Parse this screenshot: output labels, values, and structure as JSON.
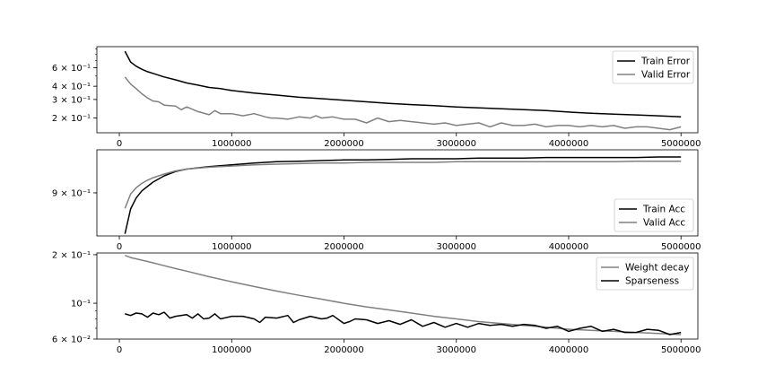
{
  "chart_data": [
    {
      "type": "line",
      "yscale": "log",
      "ylim": [
        0.145,
        0.95
      ],
      "xlim": [
        -200000,
        5150000
      ],
      "xticks": [
        0,
        1000000,
        2000000,
        3000000,
        4000000,
        5000000
      ],
      "xtick_labels": [
        "0",
        "1000000",
        "2000000",
        "3000000",
        "4000000",
        "5000000"
      ],
      "yticks": [
        0.2,
        0.3,
        0.4,
        0.6
      ],
      "ytick_labels": [
        "2 × 10⁻¹",
        "3 × 10⁻¹",
        "4 × 10⁻¹",
        "6 × 10⁻¹"
      ],
      "legend_position": "top-right",
      "grid": false,
      "series": [
        {
          "name": "Train Error",
          "color": "#000000",
          "x": [
            50000,
            100000,
            150000,
            200000,
            250000,
            300000,
            400000,
            500000,
            600000,
            700000,
            800000,
            900000,
            1000000,
            1200000,
            1400000,
            1600000,
            1800000,
            2000000,
            2200000,
            2400000,
            2600000,
            2800000,
            3000000,
            3200000,
            3400000,
            3600000,
            3800000,
            4000000,
            4200000,
            4400000,
            4600000,
            4800000,
            5000000
          ],
          "values": [
            0.86,
            0.68,
            0.62,
            0.58,
            0.55,
            0.53,
            0.49,
            0.46,
            0.43,
            0.41,
            0.39,
            0.38,
            0.365,
            0.345,
            0.33,
            0.315,
            0.305,
            0.295,
            0.285,
            0.275,
            0.268,
            0.262,
            0.255,
            0.25,
            0.245,
            0.24,
            0.235,
            0.228,
            0.222,
            0.218,
            0.214,
            0.21,
            0.205
          ]
        },
        {
          "name": "Valid Error",
          "color": "#808080",
          "x": [
            50000,
            100000,
            150000,
            200000,
            250000,
            300000,
            350000,
            400000,
            500000,
            550000,
            600000,
            700000,
            800000,
            850000,
            900000,
            1000000,
            1050000,
            1100000,
            1200000,
            1300000,
            1350000,
            1400000,
            1500000,
            1600000,
            1700000,
            1750000,
            1800000,
            1900000,
            2000000,
            2100000,
            2200000,
            2300000,
            2400000,
            2500000,
            2600000,
            2700000,
            2800000,
            2900000,
            3000000,
            3100000,
            3200000,
            3300000,
            3400000,
            3500000,
            3600000,
            3700000,
            3800000,
            3900000,
            4000000,
            4100000,
            4200000,
            4300000,
            4400000,
            4500000,
            4600000,
            4700000,
            4800000,
            4900000,
            5000000
          ],
          "values": [
            0.49,
            0.42,
            0.38,
            0.34,
            0.31,
            0.29,
            0.285,
            0.265,
            0.26,
            0.24,
            0.255,
            0.23,
            0.215,
            0.235,
            0.22,
            0.22,
            0.215,
            0.21,
            0.22,
            0.205,
            0.2,
            0.2,
            0.195,
            0.205,
            0.2,
            0.21,
            0.2,
            0.205,
            0.195,
            0.195,
            0.18,
            0.2,
            0.185,
            0.19,
            0.185,
            0.18,
            0.175,
            0.18,
            0.17,
            0.175,
            0.18,
            0.165,
            0.18,
            0.17,
            0.17,
            0.175,
            0.165,
            0.17,
            0.17,
            0.165,
            0.17,
            0.165,
            0.17,
            0.16,
            0.165,
            0.165,
            0.16,
            0.155,
            0.165
          ]
        }
      ]
    },
    {
      "type": "line",
      "yscale": "log",
      "ylim": [
        0.835,
        0.97
      ],
      "xlim": [
        -200000,
        5150000
      ],
      "xticks": [
        0,
        1000000,
        2000000,
        3000000,
        4000000,
        5000000
      ],
      "xtick_labels": [
        "0",
        "1000000",
        "2000000",
        "3000000",
        "4000000",
        "5000000"
      ],
      "yticks": [
        0.9
      ],
      "ytick_labels": [
        "9 × 10⁻¹"
      ],
      "legend_position": "bottom-right",
      "grid": false,
      "series": [
        {
          "name": "Train Acc",
          "color": "#000000",
          "x": [
            50000,
            100000,
            150000,
            200000,
            250000,
            300000,
            400000,
            500000,
            600000,
            800000,
            1000000,
            1200000,
            1400000,
            1600000,
            1800000,
            2000000,
            2200000,
            2400000,
            2600000,
            2800000,
            3000000,
            3200000,
            3400000,
            3600000,
            3800000,
            4000000,
            4200000,
            4400000,
            4600000,
            4800000,
            5000000
          ],
          "values": [
            0.838,
            0.875,
            0.892,
            0.903,
            0.91,
            0.917,
            0.927,
            0.934,
            0.938,
            0.942,
            0.945,
            0.948,
            0.95,
            0.951,
            0.952,
            0.953,
            0.953,
            0.954,
            0.955,
            0.955,
            0.955,
            0.956,
            0.956,
            0.956,
            0.957,
            0.957,
            0.957,
            0.957,
            0.957,
            0.958,
            0.958
          ]
        },
        {
          "name": "Valid Acc",
          "color": "#808080",
          "x": [
            50000,
            100000,
            150000,
            200000,
            250000,
            300000,
            400000,
            500000,
            600000,
            800000,
            1000000,
            1200000,
            1400000,
            1600000,
            1800000,
            2000000,
            2200000,
            2400000,
            2600000,
            2800000,
            3000000,
            3200000,
            3400000,
            3600000,
            3800000,
            4000000,
            4200000,
            4400000,
            4600000,
            4800000,
            5000000
          ],
          "values": [
            0.876,
            0.898,
            0.908,
            0.915,
            0.92,
            0.924,
            0.93,
            0.935,
            0.938,
            0.941,
            0.943,
            0.945,
            0.946,
            0.947,
            0.948,
            0.948,
            0.949,
            0.949,
            0.949,
            0.949,
            0.95,
            0.95,
            0.95,
            0.95,
            0.95,
            0.95,
            0.95,
            0.95,
            0.951,
            0.951,
            0.951
          ]
        }
      ]
    },
    {
      "type": "line",
      "yscale": "log",
      "ylim": [
        0.06,
        0.205
      ],
      "xlim": [
        -200000,
        5150000
      ],
      "xticks": [
        0,
        1000000,
        2000000,
        3000000,
        4000000,
        5000000
      ],
      "xtick_labels": [
        "0",
        "1000000",
        "2000000",
        "3000000",
        "4000000",
        "5000000"
      ],
      "yticks": [
        0.06,
        0.1,
        0.2
      ],
      "ytick_labels": [
        "6 × 10⁻²",
        "10⁻¹",
        "2 × 10⁻¹"
      ],
      "legend_position": "top-right",
      "grid": false,
      "series": [
        {
          "name": "Weight decay",
          "color": "#808080",
          "x": [
            50000,
            100000,
            200000,
            300000,
            400000,
            500000,
            600000,
            800000,
            1000000,
            1200000,
            1400000,
            1600000,
            1800000,
            2000000,
            2200000,
            2400000,
            2600000,
            2800000,
            3000000,
            3200000,
            3400000,
            3600000,
            3800000,
            4000000,
            4200000,
            4400000,
            4600000,
            4800000,
            5000000
          ],
          "values": [
            0.198,
            0.192,
            0.185,
            0.178,
            0.171,
            0.164,
            0.158,
            0.146,
            0.136,
            0.127,
            0.119,
            0.112,
            0.106,
            0.1,
            0.095,
            0.091,
            0.087,
            0.083,
            0.08,
            0.077,
            0.075,
            0.073,
            0.071,
            0.069,
            0.068,
            0.067,
            0.066,
            0.065,
            0.064
          ]
        },
        {
          "name": "Sparseness",
          "color": "#000000",
          "x": [
            50000,
            100000,
            150000,
            200000,
            250000,
            300000,
            350000,
            400000,
            450000,
            500000,
            600000,
            650000,
            700000,
            750000,
            800000,
            850000,
            900000,
            1000000,
            1100000,
            1200000,
            1250000,
            1300000,
            1400000,
            1500000,
            1550000,
            1600000,
            1700000,
            1800000,
            1850000,
            1900000,
            2000000,
            2050000,
            2100000,
            2200000,
            2300000,
            2400000,
            2500000,
            2600000,
            2700000,
            2800000,
            2900000,
            3000000,
            3100000,
            3200000,
            3300000,
            3400000,
            3500000,
            3600000,
            3700000,
            3800000,
            3900000,
            4000000,
            4100000,
            4200000,
            4300000,
            4400000,
            4500000,
            4600000,
            4700000,
            4800000,
            4900000,
            5000000
          ],
          "values": [
            0.086,
            0.084,
            0.087,
            0.086,
            0.082,
            0.087,
            0.085,
            0.088,
            0.081,
            0.083,
            0.085,
            0.081,
            0.086,
            0.08,
            0.081,
            0.086,
            0.08,
            0.083,
            0.083,
            0.08,
            0.076,
            0.082,
            0.081,
            0.084,
            0.076,
            0.079,
            0.083,
            0.08,
            0.081,
            0.084,
            0.075,
            0.077,
            0.08,
            0.079,
            0.075,
            0.078,
            0.074,
            0.079,
            0.072,
            0.076,
            0.071,
            0.075,
            0.071,
            0.075,
            0.073,
            0.074,
            0.072,
            0.074,
            0.073,
            0.07,
            0.072,
            0.067,
            0.07,
            0.072,
            0.067,
            0.069,
            0.066,
            0.066,
            0.069,
            0.068,
            0.064,
            0.066
          ]
        }
      ]
    }
  ]
}
